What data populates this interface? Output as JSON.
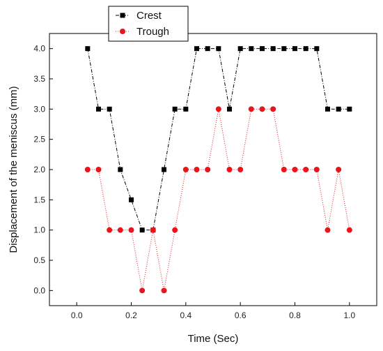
{
  "chart_data": {
    "type": "scatter",
    "xlabel": "Time (Sec)",
    "ylabel": "Displacement of the meniscus (mm)",
    "xlim": [
      -0.1,
      1.1
    ],
    "ylim": [
      -0.25,
      4.25
    ],
    "xticks": [
      "0.0",
      "0.2",
      "0.4",
      "0.6",
      "0.8",
      "1.0"
    ],
    "yticks": [
      "0.0",
      "0.5",
      "1.0",
      "1.5",
      "2.0",
      "2.5",
      "3.0",
      "3.5",
      "4.0"
    ],
    "x": [
      0.04,
      0.08,
      0.12,
      0.16,
      0.2,
      0.24,
      0.28,
      0.32,
      0.36,
      0.4,
      0.44,
      0.48,
      0.52,
      0.56,
      0.6,
      0.64,
      0.68,
      0.72,
      0.76,
      0.8,
      0.84,
      0.88,
      0.92,
      0.96,
      1.0
    ],
    "series": [
      {
        "name": "Crest",
        "color": "#000000",
        "marker": "square",
        "line": "dash-dot",
        "values": [
          4.0,
          3.0,
          3.0,
          2.0,
          1.5,
          1.0,
          1.0,
          2.0,
          3.0,
          3.0,
          4.0,
          4.0,
          4.0,
          3.0,
          4.0,
          4.0,
          4.0,
          4.0,
          4.0,
          4.0,
          4.0,
          4.0,
          3.0,
          3.0,
          3.0
        ]
      },
      {
        "name": "Trough",
        "color": "#e8151b",
        "marker": "circle",
        "line": "dotted",
        "values": [
          2.0,
          2.0,
          1.0,
          1.0,
          1.0,
          0.0,
          1.0,
          0.0,
          1.0,
          2.0,
          2.0,
          2.0,
          3.0,
          2.0,
          2.0,
          3.0,
          3.0,
          3.0,
          2.0,
          2.0,
          2.0,
          2.0,
          1.0,
          2.0,
          1.0
        ]
      }
    ],
    "legend_position": "top-left"
  }
}
